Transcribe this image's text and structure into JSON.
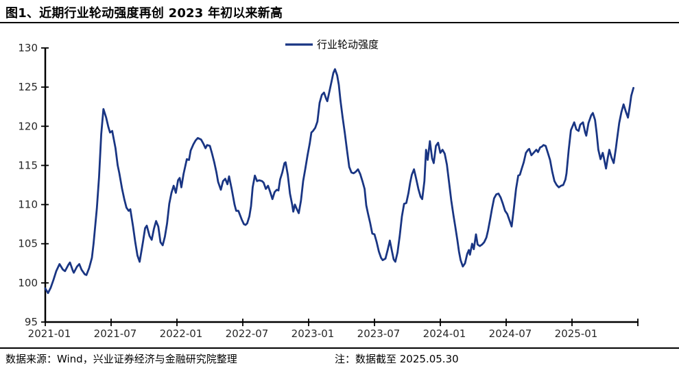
{
  "page": {
    "title": "图1、近期行业轮动强度再创 2023 年初以来新高",
    "footer_source": "数据来源：Wind，兴业证券经济与金融研究院整理",
    "footer_note": "注：数据截至 2025.05.30"
  },
  "colors": {
    "line": "#193583",
    "axis": "#000000",
    "tick_label": "#262626",
    "text": "#000000",
    "background": "#ffffff"
  },
  "chart_data": {
    "type": "line",
    "title": "",
    "legend": "行业轮动强度",
    "legend_position": "top-center",
    "grid": false,
    "x_axis": {
      "unit": "months since 2021-01",
      "tick_step_months": 6,
      "tick_labels": [
        "2021-01",
        "2021-07",
        "2022-01",
        "2022-07",
        "2023-01",
        "2023-07",
        "2024-01",
        "2024-07",
        "2025-01"
      ],
      "tick_months": [
        0,
        6,
        12,
        18,
        24,
        30,
        36,
        42,
        48
      ],
      "extra_unlabeled_tick_month": 54,
      "data_end": "2025-05-30"
    },
    "y_axis": {
      "ylim": [
        95,
        130
      ],
      "ticks": [
        95,
        100,
        105,
        110,
        115,
        120,
        125,
        130
      ]
    },
    "series": [
      {
        "name": "行业轮动强度",
        "points": [
          [
            0,
            99.3
          ],
          [
            0.25,
            98.7
          ],
          [
            0.5,
            99.4
          ],
          [
            0.75,
            100.4
          ],
          [
            1,
            101.5
          ],
          [
            1.3,
            102.4
          ],
          [
            1.6,
            101.7
          ],
          [
            1.8,
            101.5
          ],
          [
            2.1,
            102.3
          ],
          [
            2.25,
            102.6
          ],
          [
            2.5,
            101.6
          ],
          [
            2.6,
            101.3
          ],
          [
            2.9,
            102.1
          ],
          [
            3.1,
            102.4
          ],
          [
            3.3,
            101.7
          ],
          [
            3.6,
            101.1
          ],
          [
            3.75,
            101.0
          ],
          [
            4,
            101.9
          ],
          [
            4.25,
            103.2
          ],
          [
            4.4,
            105.0
          ],
          [
            4.7,
            109.5
          ],
          [
            4.9,
            113.5
          ],
          [
            5.1,
            119.0
          ],
          [
            5.3,
            122.2
          ],
          [
            5.55,
            121.1
          ],
          [
            5.75,
            119.9
          ],
          [
            5.9,
            119.2
          ],
          [
            6.1,
            119.4
          ],
          [
            6.4,
            117.2
          ],
          [
            6.6,
            115.0
          ],
          [
            6.75,
            114.0
          ],
          [
            7,
            112.0
          ],
          [
            7.2,
            110.7
          ],
          [
            7.4,
            109.6
          ],
          [
            7.6,
            109.2
          ],
          [
            7.75,
            109.4
          ],
          [
            8,
            107.2
          ],
          [
            8.2,
            105.2
          ],
          [
            8.4,
            103.5
          ],
          [
            8.6,
            102.7
          ],
          [
            8.9,
            105.2
          ],
          [
            9.1,
            107.0
          ],
          [
            9.25,
            107.3
          ],
          [
            9.5,
            106.0
          ],
          [
            9.7,
            105.5
          ],
          [
            9.9,
            106.9
          ],
          [
            10.1,
            107.9
          ],
          [
            10.3,
            107.2
          ],
          [
            10.5,
            105.2
          ],
          [
            10.7,
            104.8
          ],
          [
            10.9,
            105.9
          ],
          [
            11.1,
            107.6
          ],
          [
            11.3,
            110.1
          ],
          [
            11.5,
            111.5
          ],
          [
            11.7,
            112.4
          ],
          [
            11.9,
            111.5
          ],
          [
            12.1,
            113.1
          ],
          [
            12.25,
            113.4
          ],
          [
            12.4,
            112.2
          ],
          [
            12.6,
            113.9
          ],
          [
            12.9,
            115.8
          ],
          [
            13.1,
            115.7
          ],
          [
            13.25,
            116.9
          ],
          [
            13.5,
            117.7
          ],
          [
            13.7,
            118.2
          ],
          [
            13.9,
            118.5
          ],
          [
            14.2,
            118.3
          ],
          [
            14.4,
            117.8
          ],
          [
            14.6,
            117.2
          ],
          [
            14.75,
            117.6
          ],
          [
            15,
            117.5
          ],
          [
            15.2,
            116.5
          ],
          [
            15.4,
            115.4
          ],
          [
            15.6,
            114.1
          ],
          [
            15.75,
            112.9
          ],
          [
            16,
            111.9
          ],
          [
            16.2,
            113.0
          ],
          [
            16.4,
            113.3
          ],
          [
            16.6,
            112.6
          ],
          [
            16.75,
            113.6
          ],
          [
            17,
            111.9
          ],
          [
            17.25,
            110.0
          ],
          [
            17.4,
            109.2
          ],
          [
            17.6,
            109.2
          ],
          [
            17.9,
            108.1
          ],
          [
            18.1,
            107.5
          ],
          [
            18.25,
            107.4
          ],
          [
            18.4,
            107.6
          ],
          [
            18.6,
            108.5
          ],
          [
            18.75,
            109.8
          ],
          [
            18.9,
            112.2
          ],
          [
            19.1,
            113.7
          ],
          [
            19.3,
            113.0
          ],
          [
            19.5,
            113.1
          ],
          [
            19.75,
            113.0
          ],
          [
            19.9,
            112.8
          ],
          [
            20.1,
            112.0
          ],
          [
            20.3,
            112.4
          ],
          [
            20.5,
            111.6
          ],
          [
            20.7,
            110.7
          ],
          [
            20.9,
            111.6
          ],
          [
            21.1,
            111.9
          ],
          [
            21.25,
            111.8
          ],
          [
            21.4,
            113.2
          ],
          [
            21.6,
            114.1
          ],
          [
            21.8,
            115.3
          ],
          [
            21.9,
            115.4
          ],
          [
            22.1,
            113.8
          ],
          [
            22.3,
            111.4
          ],
          [
            22.5,
            110.0
          ],
          [
            22.6,
            109.1
          ],
          [
            22.75,
            110.0
          ],
          [
            22.9,
            109.5
          ],
          [
            23.1,
            108.9
          ],
          [
            23.3,
            110.5
          ],
          [
            23.5,
            113.0
          ],
          [
            23.7,
            114.6
          ],
          [
            23.9,
            116.3
          ],
          [
            24.1,
            117.8
          ],
          [
            24.25,
            119.2
          ],
          [
            24.4,
            119.4
          ],
          [
            24.6,
            119.8
          ],
          [
            24.8,
            120.6
          ],
          [
            25,
            123.0
          ],
          [
            25.2,
            124.0
          ],
          [
            25.4,
            124.3
          ],
          [
            25.6,
            123.5
          ],
          [
            25.7,
            123.2
          ],
          [
            25.9,
            124.5
          ],
          [
            26.1,
            125.8
          ],
          [
            26.25,
            126.8
          ],
          [
            26.4,
            127.3
          ],
          [
            26.6,
            126.5
          ],
          [
            26.75,
            125.3
          ],
          [
            26.9,
            123.3
          ],
          [
            27.1,
            121.1
          ],
          [
            27.3,
            119.1
          ],
          [
            27.5,
            116.9
          ],
          [
            27.7,
            114.8
          ],
          [
            27.9,
            114.1
          ],
          [
            28.1,
            114.0
          ],
          [
            28.3,
            114.2
          ],
          [
            28.5,
            114.5
          ],
          [
            28.7,
            113.9
          ],
          [
            28.9,
            113.0
          ],
          [
            29.1,
            112.0
          ],
          [
            29.25,
            109.9
          ],
          [
            29.4,
            108.9
          ],
          [
            29.6,
            107.7
          ],
          [
            29.8,
            106.3
          ],
          [
            30,
            106.2
          ],
          [
            30.2,
            105.2
          ],
          [
            30.4,
            104.0
          ],
          [
            30.6,
            103.2
          ],
          [
            30.75,
            102.9
          ],
          [
            31,
            103.1
          ],
          [
            31.2,
            104.2
          ],
          [
            31.4,
            105.4
          ],
          [
            31.6,
            104.0
          ],
          [
            31.75,
            103.0
          ],
          [
            31.9,
            102.7
          ],
          [
            32.1,
            103.9
          ],
          [
            32.3,
            106.0
          ],
          [
            32.5,
            108.5
          ],
          [
            32.7,
            110.1
          ],
          [
            32.9,
            110.2
          ],
          [
            33.1,
            111.5
          ],
          [
            33.25,
            112.8
          ],
          [
            33.4,
            113.8
          ],
          [
            33.6,
            114.5
          ],
          [
            33.8,
            113.3
          ],
          [
            34,
            112.0
          ],
          [
            34.2,
            111.0
          ],
          [
            34.35,
            110.7
          ],
          [
            34.55,
            113.0
          ],
          [
            34.7,
            117.0
          ],
          [
            34.85,
            115.7
          ],
          [
            35.05,
            118.1
          ],
          [
            35.25,
            115.9
          ],
          [
            35.4,
            115.3
          ],
          [
            35.6,
            117.5
          ],
          [
            35.8,
            117.9
          ],
          [
            36,
            116.6
          ],
          [
            36.2,
            117.0
          ],
          [
            36.4,
            116.5
          ],
          [
            36.6,
            115.1
          ],
          [
            36.8,
            112.8
          ],
          [
            37,
            110.5
          ],
          [
            37.2,
            108.6
          ],
          [
            37.35,
            107.3
          ],
          [
            37.55,
            105.5
          ],
          [
            37.7,
            104.0
          ],
          [
            37.85,
            102.9
          ],
          [
            38.05,
            102.1
          ],
          [
            38.25,
            102.5
          ],
          [
            38.45,
            103.7
          ],
          [
            38.6,
            104.2
          ],
          [
            38.7,
            103.6
          ],
          [
            38.9,
            105.0
          ],
          [
            39.05,
            104.3
          ],
          [
            39.25,
            106.2
          ],
          [
            39.4,
            104.9
          ],
          [
            39.6,
            104.7
          ],
          [
            39.8,
            104.9
          ],
          [
            40,
            105.2
          ],
          [
            40.2,
            105.8
          ],
          [
            40.35,
            106.7
          ],
          [
            40.55,
            108.2
          ],
          [
            40.7,
            109.4
          ],
          [
            40.9,
            110.8
          ],
          [
            41.1,
            111.3
          ],
          [
            41.3,
            111.4
          ],
          [
            41.5,
            110.9
          ],
          [
            41.7,
            110.1
          ],
          [
            41.9,
            109.2
          ],
          [
            42.1,
            108.8
          ],
          [
            42.3,
            108.0
          ],
          [
            42.5,
            107.2
          ],
          [
            42.7,
            109.5
          ],
          [
            42.9,
            112.0
          ],
          [
            43.1,
            113.7
          ],
          [
            43.25,
            113.8
          ],
          [
            43.4,
            114.5
          ],
          [
            43.6,
            115.4
          ],
          [
            43.8,
            116.6
          ],
          [
            44,
            117.0
          ],
          [
            44.1,
            117.1
          ],
          [
            44.3,
            116.3
          ],
          [
            44.5,
            116.6
          ],
          [
            44.75,
            117.0
          ],
          [
            44.9,
            116.7
          ],
          [
            45.1,
            117.3
          ],
          [
            45.25,
            117.4
          ],
          [
            45.4,
            117.6
          ],
          [
            45.6,
            117.5
          ],
          [
            45.8,
            116.6
          ],
          [
            46,
            115.7
          ],
          [
            46.2,
            114.2
          ],
          [
            46.4,
            113.0
          ],
          [
            46.6,
            112.5
          ],
          [
            46.8,
            112.2
          ],
          [
            47,
            112.4
          ],
          [
            47.2,
            112.5
          ],
          [
            47.4,
            113.2
          ],
          [
            47.5,
            114.0
          ],
          [
            47.7,
            117.0
          ],
          [
            47.9,
            119.5
          ],
          [
            48.2,
            120.5
          ],
          [
            48.4,
            119.6
          ],
          [
            48.6,
            119.4
          ],
          [
            48.75,
            120.2
          ],
          [
            49,
            120.5
          ],
          [
            49.2,
            119.2
          ],
          [
            49.3,
            118.8
          ],
          [
            49.5,
            120.4
          ],
          [
            49.75,
            121.4
          ],
          [
            49.9,
            121.7
          ],
          [
            50.1,
            120.8
          ],
          [
            50.25,
            119.1
          ],
          [
            50.4,
            117.0
          ],
          [
            50.6,
            115.8
          ],
          [
            50.8,
            116.6
          ],
          [
            50.9,
            116.0
          ],
          [
            51.1,
            114.6
          ],
          [
            51.25,
            115.9
          ],
          [
            51.4,
            117.0
          ],
          [
            51.6,
            116.0
          ],
          [
            51.8,
            115.3
          ],
          [
            52,
            117.2
          ],
          [
            52.1,
            118.3
          ],
          [
            52.3,
            120.4
          ],
          [
            52.5,
            121.8
          ],
          [
            52.7,
            122.8
          ],
          [
            52.9,
            121.9
          ],
          [
            53.1,
            121.1
          ],
          [
            53.25,
            122.4
          ],
          [
            53.4,
            123.9
          ],
          [
            53.6,
            124.9
          ]
        ]
      }
    ]
  }
}
